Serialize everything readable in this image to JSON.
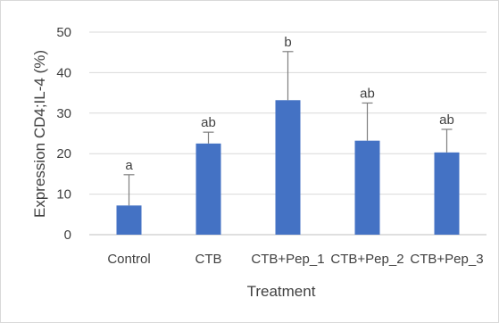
{
  "chart_data": {
    "type": "bar",
    "title": "",
    "xlabel": "Treatment",
    "ylabel": "Expression CD4;IL-4 (%)",
    "ylim": [
      0,
      50
    ],
    "yticks": [
      0,
      10,
      20,
      30,
      40,
      50
    ],
    "grid": true,
    "legend": "none",
    "bar_color": "#4472c4",
    "error_bar_color": "#7f7f7f",
    "categories": [
      "Control",
      "CTB",
      "CTB+Pep_1",
      "CTB+Pep_2",
      "CTB+Pep_3"
    ],
    "values": [
      7.2,
      22.5,
      33.2,
      23.2,
      20.3
    ],
    "error_upper": [
      7.6,
      2.8,
      12.0,
      9.3,
      5.7
    ],
    "annotations": [
      "a",
      "ab",
      "b",
      "ab",
      "ab"
    ]
  }
}
